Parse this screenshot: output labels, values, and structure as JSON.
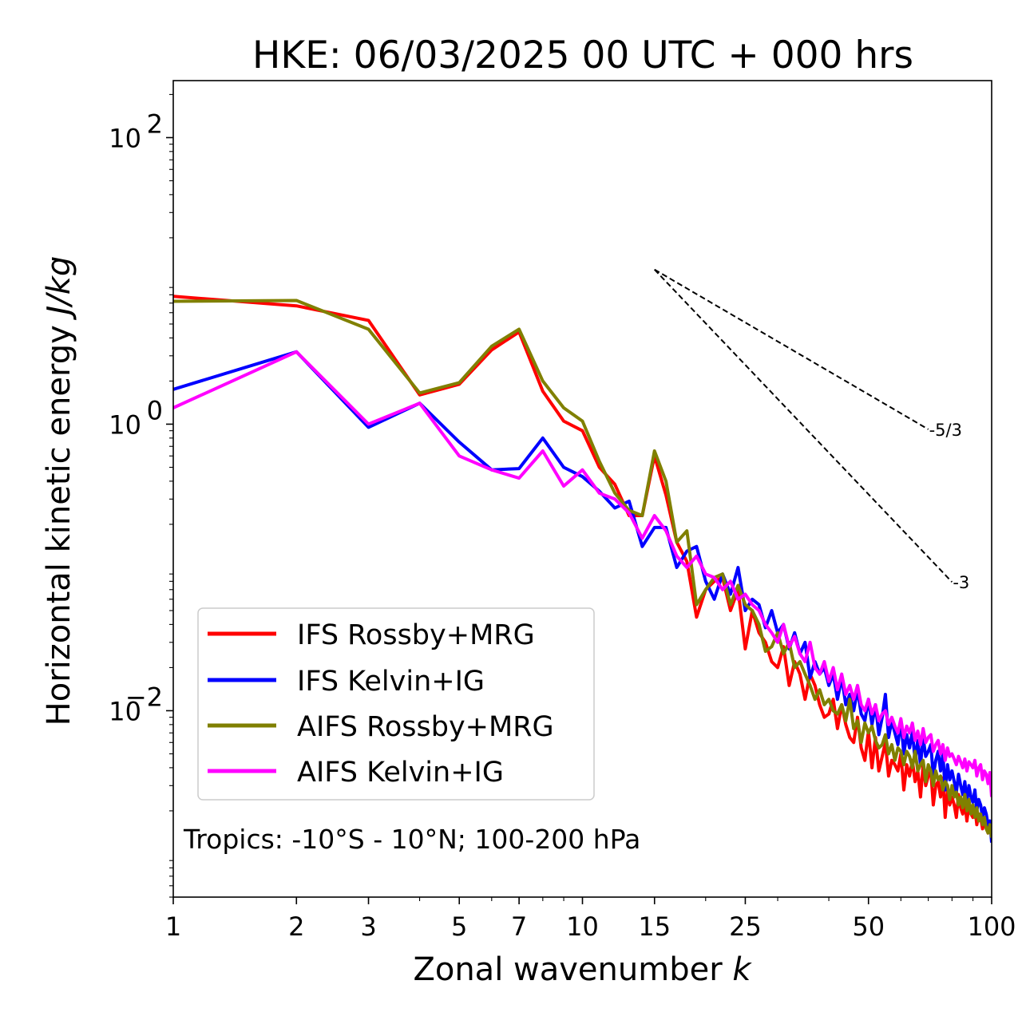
{
  "chart_data": {
    "type": "line",
    "title": "HKE: 06/03/2025 00 UTC + 000 hrs",
    "xlabel": "Zonal wavenumber",
    "xlabel_var": "k",
    "ylabel": "Horizontal kinetic energy",
    "ylabel_unit": "J/kg",
    "xscale": "log",
    "yscale": "log",
    "xlim": [
      1,
      100
    ],
    "ylim": [
      0.0005,
      250
    ],
    "x_ticks": [
      {
        "value": 1,
        "label": "1"
      },
      {
        "value": 2,
        "label": "2"
      },
      {
        "value": 3,
        "label": "3"
      },
      {
        "value": 5,
        "label": "5"
      },
      {
        "value": 7,
        "label": "7"
      },
      {
        "value": 10,
        "label": "10"
      },
      {
        "value": 15,
        "label": "15"
      },
      {
        "value": 25,
        "label": "25"
      },
      {
        "value": 50,
        "label": "50"
      },
      {
        "value": 100,
        "label": "100"
      }
    ],
    "y_ticks": [
      {
        "value": 100,
        "base": "10",
        "exp": "2"
      },
      {
        "value": 1,
        "base": "10",
        "exp": "0"
      },
      {
        "value": 0.01,
        "base": "10",
        "exp": "−2"
      }
    ],
    "annotation": "Tropics: -10°S - 10°N; 100-200 hPa",
    "legend_position": "lower-left",
    "reference_slopes": [
      {
        "label": "-5/3",
        "exponent": -1.6667,
        "x_start": 15,
        "y_start": 12,
        "x_end": 70
      },
      {
        "label": "-3",
        "exponent": -3,
        "x_start": 15,
        "y_start": 12,
        "x_end": 80
      }
    ],
    "series": [
      {
        "name": "IFS Rossby+MRG",
        "color": "#ff0000",
        "x": [
          1,
          2,
          3,
          4,
          5,
          6,
          7,
          8,
          9,
          10,
          11,
          12,
          13,
          14,
          15,
          16,
          17,
          18,
          19,
          20,
          21,
          22,
          23,
          24,
          25,
          26,
          27,
          28,
          29,
          30,
          31,
          32,
          33,
          34,
          35,
          36,
          37,
          38,
          39,
          40,
          41,
          42,
          43,
          44,
          45,
          46,
          47,
          48,
          49,
          50,
          51,
          52,
          53,
          54,
          55,
          56,
          57,
          58,
          59,
          60,
          61,
          62,
          63,
          64,
          65,
          66,
          67,
          68,
          69,
          70,
          71,
          72,
          73,
          74,
          75,
          76,
          77,
          78,
          79,
          80,
          81,
          82,
          83,
          84,
          85,
          86,
          87,
          88,
          89,
          90,
          91,
          92,
          93,
          94,
          95,
          96,
          97,
          98,
          99,
          100
        ],
        "values": [
          7.8,
          6.7,
          5.3,
          1.6,
          1.9,
          3.3,
          4.4,
          1.7,
          1.05,
          0.9,
          0.5,
          0.38,
          0.23,
          0.23,
          0.6,
          0.32,
          0.15,
          0.11,
          0.045,
          0.07,
          0.08,
          0.085,
          0.05,
          0.07,
          0.027,
          0.05,
          0.035,
          0.03,
          0.022,
          0.02,
          0.028,
          0.015,
          0.022,
          0.018,
          0.012,
          0.018,
          0.015,
          0.011,
          0.009,
          0.0095,
          0.012,
          0.0075,
          0.011,
          0.008,
          0.0065,
          0.006,
          0.009,
          0.0055,
          0.0045,
          0.0072,
          0.004,
          0.0065,
          0.0038,
          0.0048,
          0.006,
          0.0035,
          0.0045,
          0.0042,
          0.0038,
          0.005,
          0.0028,
          0.0042,
          0.0035,
          0.0045,
          0.0032,
          0.0038,
          0.0025,
          0.0042,
          0.003,
          0.0035,
          0.0038,
          0.0022,
          0.003,
          0.0032,
          0.0025,
          0.0034,
          0.0018,
          0.0028,
          0.0022,
          0.0025,
          0.0022,
          0.0018,
          0.0026,
          0.0021,
          0.0019,
          0.0023,
          0.0017,
          0.0022,
          0.0019,
          0.0018,
          0.0021,
          0.0016,
          0.0019,
          0.0018,
          0.0015,
          0.0017,
          0.0016,
          0.0014,
          0.0016,
          0.0015
        ]
      },
      {
        "name": "IFS Kelvin+IG",
        "color": "#0000ff",
        "x": [
          1,
          2,
          3,
          4,
          5,
          6,
          7,
          8,
          9,
          10,
          11,
          12,
          13,
          14,
          15,
          16,
          17,
          18,
          19,
          20,
          21,
          22,
          23,
          24,
          25,
          26,
          27,
          28,
          29,
          30,
          31,
          32,
          33,
          34,
          35,
          36,
          37,
          38,
          39,
          40,
          41,
          42,
          43,
          44,
          45,
          46,
          47,
          48,
          49,
          50,
          51,
          52,
          53,
          54,
          55,
          56,
          57,
          58,
          59,
          60,
          61,
          62,
          63,
          64,
          65,
          66,
          67,
          68,
          69,
          70,
          71,
          72,
          73,
          74,
          75,
          76,
          77,
          78,
          79,
          80,
          81,
          82,
          83,
          84,
          85,
          86,
          87,
          88,
          89,
          90,
          91,
          92,
          93,
          94,
          95,
          96,
          97,
          98,
          99,
          100
        ],
        "values": [
          1.75,
          3.2,
          0.95,
          1.4,
          0.75,
          0.48,
          0.49,
          0.8,
          0.5,
          0.43,
          0.34,
          0.26,
          0.29,
          0.14,
          0.19,
          0.19,
          0.1,
          0.13,
          0.14,
          0.08,
          0.06,
          0.09,
          0.065,
          0.1,
          0.05,
          0.06,
          0.055,
          0.038,
          0.05,
          0.035,
          0.04,
          0.027,
          0.035,
          0.025,
          0.03,
          0.017,
          0.022,
          0.018,
          0.02,
          0.015,
          0.018,
          0.012,
          0.017,
          0.011,
          0.013,
          0.01,
          0.014,
          0.0095,
          0.0085,
          0.012,
          0.008,
          0.011,
          0.0068,
          0.009,
          0.013,
          0.0065,
          0.0085,
          0.007,
          0.0058,
          0.0085,
          0.005,
          0.0068,
          0.0055,
          0.0072,
          0.0045,
          0.0062,
          0.0042,
          0.0065,
          0.0048,
          0.0052,
          0.0058,
          0.0035,
          0.0045,
          0.0052,
          0.0038,
          0.005,
          0.0028,
          0.0042,
          0.0033,
          0.0038,
          0.0032,
          0.0027,
          0.0036,
          0.003,
          0.0026,
          0.0032,
          0.0023,
          0.003,
          0.0025,
          0.0023,
          0.0028,
          0.002,
          0.0024,
          0.0022,
          0.0018,
          0.0021,
          0.0019,
          0.0016,
          0.0017,
          0.0012
        ]
      },
      {
        "name": "AIFS Rossby+MRG",
        "color": "#808000",
        "x": [
          1,
          2,
          3,
          4,
          5,
          6,
          7,
          8,
          9,
          10,
          11,
          12,
          13,
          14,
          15,
          16,
          17,
          18,
          19,
          20,
          21,
          22,
          23,
          24,
          25,
          26,
          27,
          28,
          29,
          30,
          31,
          32,
          33,
          34,
          35,
          36,
          37,
          38,
          39,
          40,
          41,
          42,
          43,
          44,
          45,
          46,
          47,
          48,
          49,
          50,
          51,
          52,
          53,
          54,
          55,
          56,
          57,
          58,
          59,
          60,
          61,
          62,
          63,
          64,
          65,
          66,
          67,
          68,
          69,
          70,
          71,
          72,
          73,
          74,
          75,
          76,
          77,
          78,
          79,
          80,
          81,
          82,
          83,
          84,
          85,
          86,
          87,
          88,
          89,
          90,
          91,
          92,
          93,
          94,
          95,
          96,
          97,
          98,
          99,
          100
        ],
        "values": [
          7.2,
          7.3,
          4.6,
          1.65,
          1.95,
          3.5,
          4.6,
          2.0,
          1.3,
          1.05,
          0.55,
          0.33,
          0.25,
          0.23,
          0.65,
          0.4,
          0.15,
          0.18,
          0.055,
          0.07,
          0.085,
          0.09,
          0.055,
          0.075,
          0.055,
          0.05,
          0.04,
          0.026,
          0.028,
          0.035,
          0.025,
          0.03,
          0.02,
          0.022,
          0.018,
          0.015,
          0.012,
          0.014,
          0.011,
          0.012,
          0.01,
          0.0095,
          0.011,
          0.0085,
          0.012,
          0.0075,
          0.0085,
          0.006,
          0.0082,
          0.007,
          0.0078,
          0.0062,
          0.0055,
          0.0058,
          0.0068,
          0.005,
          0.0058,
          0.0045,
          0.0055,
          0.0052,
          0.0042,
          0.0052,
          0.0048,
          0.004,
          0.0052,
          0.0038,
          0.0042,
          0.0045,
          0.0032,
          0.0042,
          0.0038,
          0.003,
          0.0038,
          0.0033,
          0.0035,
          0.0028,
          0.0032,
          0.003,
          0.0024,
          0.003,
          0.0025,
          0.0027,
          0.0022,
          0.0025,
          0.0021,
          0.0026,
          0.002,
          0.0024,
          0.0019,
          0.0022,
          0.0018,
          0.0021,
          0.0017,
          0.0019,
          0.0016,
          0.0018,
          0.0015,
          0.0014,
          0.0016,
          0.0013
        ]
      },
      {
        "name": "AIFS Kelvin+IG",
        "color": "#ff00ff",
        "x": [
          1,
          2,
          3,
          4,
          5,
          6,
          7,
          8,
          9,
          10,
          11,
          12,
          13,
          14,
          15,
          16,
          17,
          18,
          19,
          20,
          21,
          22,
          23,
          24,
          25,
          26,
          27,
          28,
          29,
          30,
          31,
          32,
          33,
          34,
          35,
          36,
          37,
          38,
          39,
          40,
          41,
          42,
          43,
          44,
          45,
          46,
          47,
          48,
          49,
          50,
          51,
          52,
          53,
          54,
          55,
          56,
          57,
          58,
          59,
          60,
          61,
          62,
          63,
          64,
          65,
          66,
          67,
          68,
          69,
          70,
          71,
          72,
          73,
          74,
          75,
          76,
          77,
          78,
          79,
          80,
          81,
          82,
          83,
          84,
          85,
          86,
          87,
          88,
          89,
          90,
          91,
          92,
          93,
          94,
          95,
          96,
          97,
          98,
          99,
          100
        ],
        "values": [
          1.3,
          3.2,
          1.0,
          1.4,
          0.6,
          0.48,
          0.42,
          0.65,
          0.37,
          0.48,
          0.33,
          0.3,
          0.24,
          0.16,
          0.23,
          0.18,
          0.12,
          0.1,
          0.12,
          0.09,
          0.085,
          0.07,
          0.08,
          0.06,
          0.065,
          0.055,
          0.05,
          0.04,
          0.035,
          0.03,
          0.04,
          0.028,
          0.033,
          0.025,
          0.022,
          0.03,
          0.02,
          0.018,
          0.022,
          0.016,
          0.02,
          0.014,
          0.018,
          0.013,
          0.015,
          0.012,
          0.015,
          0.011,
          0.01,
          0.012,
          0.0095,
          0.011,
          0.0085,
          0.0095,
          0.01,
          0.008,
          0.009,
          0.0078,
          0.007,
          0.0088,
          0.0065,
          0.0078,
          0.007,
          0.0082,
          0.0062,
          0.0072,
          0.0058,
          0.0075,
          0.006,
          0.0065,
          0.0068,
          0.0052,
          0.0058,
          0.0062,
          0.005,
          0.0058,
          0.0045,
          0.0055,
          0.0048,
          0.005,
          0.0046,
          0.0042,
          0.0048,
          0.0044,
          0.004,
          0.0046,
          0.0038,
          0.0044,
          0.0042,
          0.004,
          0.0045,
          0.0035,
          0.004,
          0.0042,
          0.0033,
          0.0038,
          0.0036,
          0.0031,
          0.0037,
          0.0025
        ]
      }
    ]
  }
}
